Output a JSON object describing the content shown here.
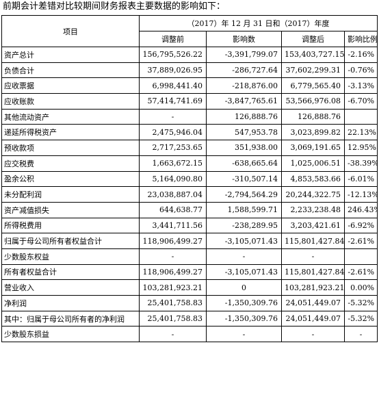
{
  "intro": "前期会计差错对比较期间财务报表主要数据的影响如下：",
  "header": {
    "item": "项目",
    "period": "（2017）年 12 月 31 日和（2017）年度",
    "col_before": "调整前",
    "col_impact": "影响数",
    "col_after": "调整后",
    "col_ratio": "影响比例"
  },
  "rows": [
    {
      "label": "资产总计",
      "before": "156,795,526.22",
      "impact": "-3,391,799.07",
      "after": "153,403,727.15",
      "ratio": "-2.16%"
    },
    {
      "label": "负债合计",
      "before": "37,889,026.95",
      "impact": "-286,727.64",
      "after": "37,602,299.31",
      "ratio": "-0.76%"
    },
    {
      "label": "应收票据",
      "before": "6,998,441.40",
      "impact": "-218,876.00",
      "after": "6,779,565.40",
      "ratio": "-3.13%"
    },
    {
      "label": "应收账款",
      "before": "57,414,741.69",
      "impact": "-3,847,765.61",
      "after": "53,566,976.08",
      "ratio": "-6.70%"
    },
    {
      "label": "其他流动资产",
      "before": "-",
      "impact": "126,888.76",
      "after": "126,888.76",
      "ratio": ""
    },
    {
      "label": "递延所得税资产",
      "before": "2,475,946.04",
      "impact": "547,953.78",
      "after": "3,023,899.82",
      "ratio": "22.13%"
    },
    {
      "label": "预收款项",
      "before": "2,717,253.65",
      "impact": "351,938.00",
      "after": "3,069,191.65",
      "ratio": "12.95%"
    },
    {
      "label": "应交税费",
      "before": "1,663,672.15",
      "impact": "-638,665.64",
      "after": "1,025,006.51",
      "ratio": "-38.39%"
    },
    {
      "label": "盈余公积",
      "before": "5,164,090.80",
      "impact": "-310,507.14",
      "after": "4,853,583.66",
      "ratio": "-6.01%"
    },
    {
      "label": "未分配利润",
      "before": "23,038,887.04",
      "impact": "-2,794,564.29",
      "after": "20,244,322.75",
      "ratio": "-12.13%"
    },
    {
      "label": "资产减值损失",
      "before": "644,638.77",
      "impact": "1,588,599.71",
      "after": "2,233,238.48",
      "ratio": "246.43%"
    },
    {
      "label": "所得税费用",
      "before": "3,441,711.56",
      "impact": "-238,289.95",
      "after": "3,203,421.61",
      "ratio": "-6.92%"
    },
    {
      "label": "归属于母公司所有者权益合计",
      "before": "118,906,499.27",
      "impact": "-3,105,071.43",
      "after": "115,801,427.84",
      "ratio": "-2.61%"
    },
    {
      "label": "少数股东权益",
      "before": "-",
      "impact": "-",
      "after": "-",
      "ratio": ""
    },
    {
      "label": "所有者权益合计",
      "before": "118,906,499.27",
      "impact": "-3,105,071.43",
      "after": "115,801,427.84",
      "ratio": "-2.61%"
    },
    {
      "label": "营业收入",
      "before": "103,281,923.21",
      "impact": "0",
      "after": "103,281,923.21",
      "ratio": "0.00%"
    },
    {
      "label": "净利润",
      "before": "25,401,758.83",
      "impact": "-1,350,309.76",
      "after": "24,051,449.07",
      "ratio": "-5.32%"
    },
    {
      "label": "其中：归属于母公司所有者的净利润",
      "before": "25,401,758.83",
      "impact": "-1,350,309.76",
      "after": "24,051,449.07",
      "ratio": "-5.32%"
    },
    {
      "label": "少数股东损益",
      "before": "-",
      "impact": "-",
      "after": "-",
      "ratio": "-"
    }
  ]
}
